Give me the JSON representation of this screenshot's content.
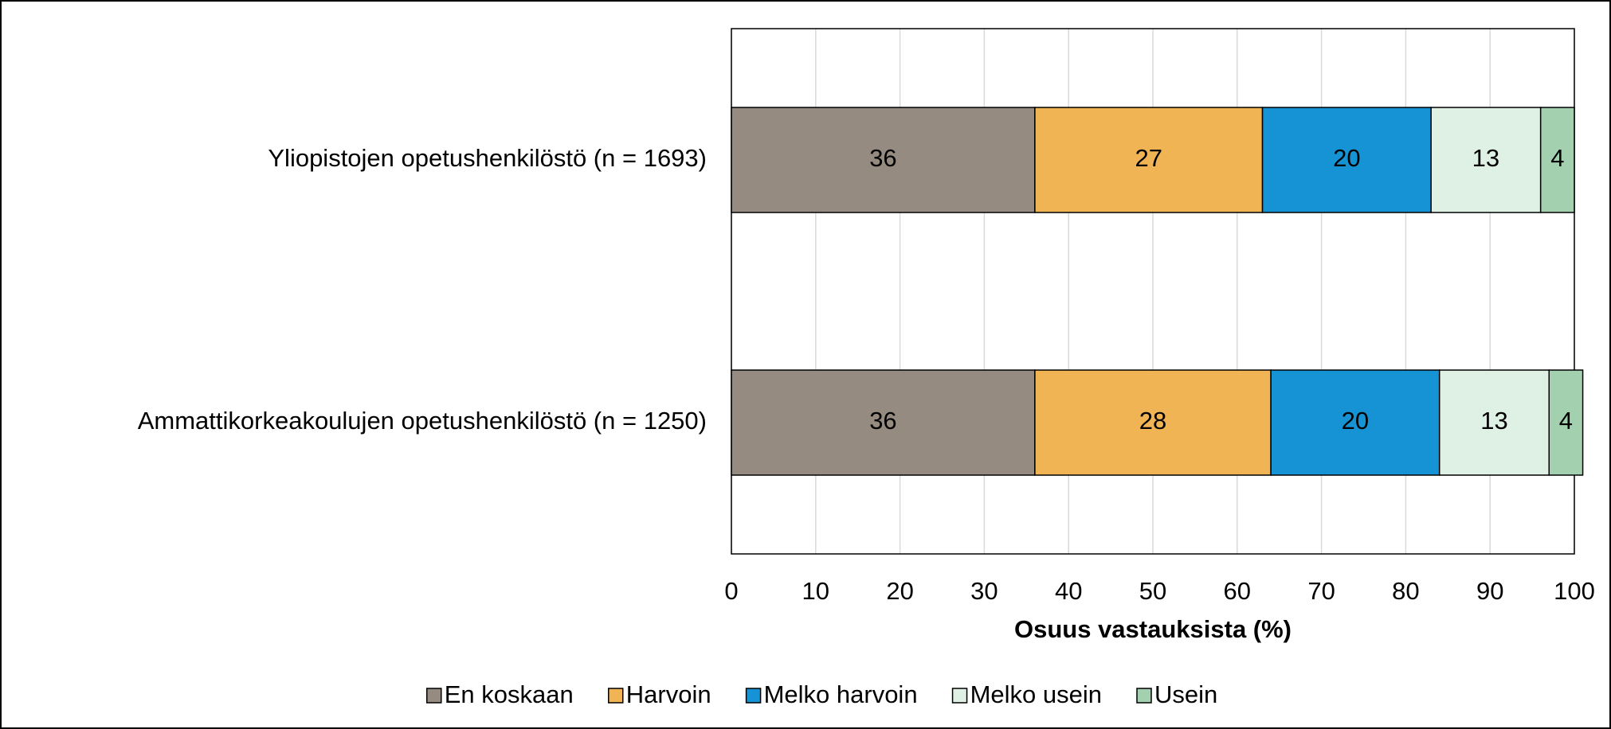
{
  "chart_data": {
    "type": "stacked-bar-horizontal",
    "categories": [
      "Yliopistojen opetushenkilöstö (n = 1693)",
      "Ammattikorkeakoulujen opetushenkilöstö (n = 1250)"
    ],
    "series": [
      {
        "name": "En koskaan",
        "color": "#968b80",
        "values": [
          36,
          36
        ]
      },
      {
        "name": "Harvoin",
        "color": "#f0b455",
        "values": [
          27,
          28
        ]
      },
      {
        "name": "Melko harvoin",
        "color": "#1593d4",
        "values": [
          20,
          20
        ]
      },
      {
        "name": "Melko usein",
        "color": "#dff0e4",
        "values": [
          13,
          13
        ]
      },
      {
        "name": "Usein",
        "color": "#a3d1b0",
        "values": [
          4,
          4
        ]
      }
    ],
    "x_label": "Osuus vastauksista (%)",
    "xlim": [
      0,
      100
    ],
    "xticks": [
      0,
      10,
      20,
      30,
      40,
      50,
      60,
      70,
      80,
      90,
      100
    ],
    "grid": true,
    "legend": "bottom"
  }
}
